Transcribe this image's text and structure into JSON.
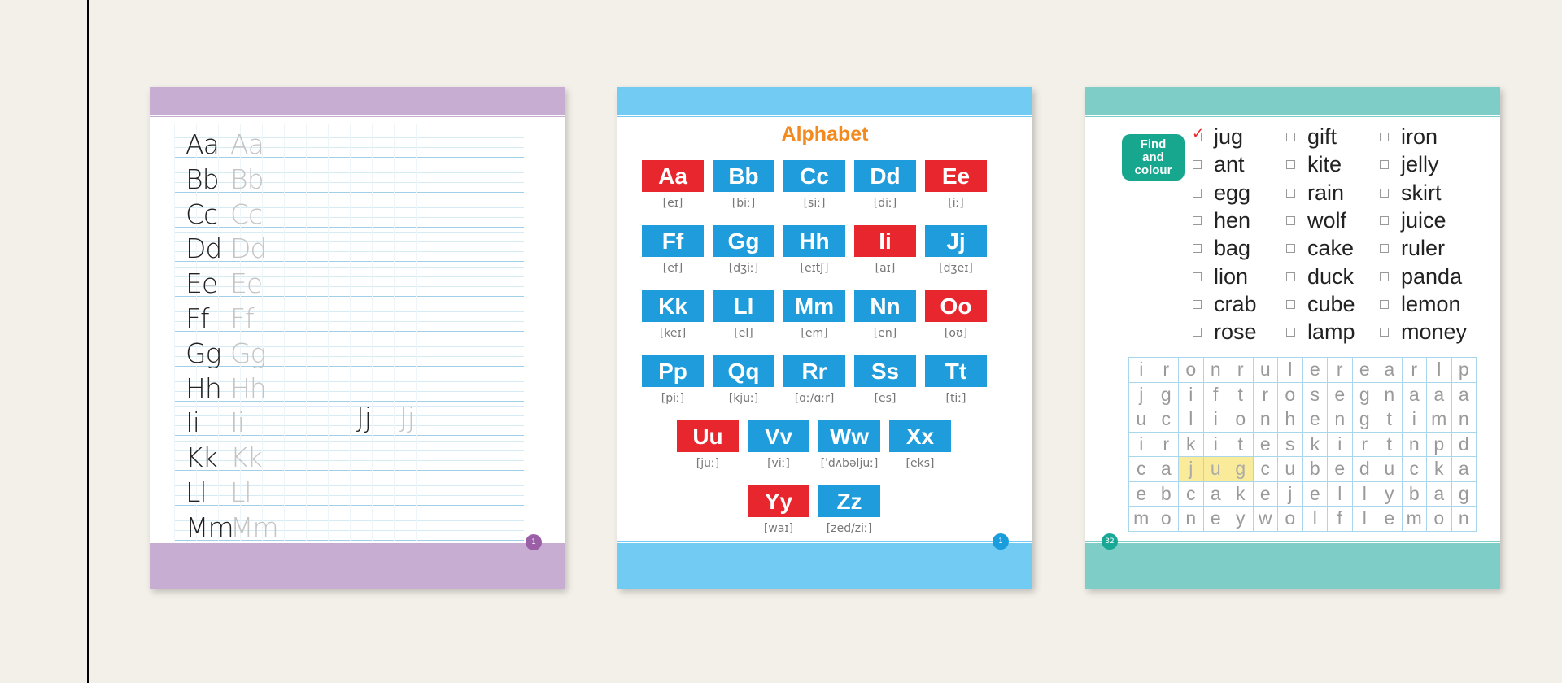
{
  "page1": {
    "page_number": "1",
    "rows": [
      {
        "letters": "Aa"
      },
      {
        "letters": "Bb"
      },
      {
        "letters": "Cc"
      },
      {
        "letters": "Dd"
      },
      {
        "letters": "Ee"
      },
      {
        "letters": "Ff"
      },
      {
        "letters": "Gg"
      },
      {
        "letters": "Hh"
      },
      {
        "letters": "Ii"
      },
      {
        "letters": "Kk"
      },
      {
        "letters": "Ll"
      },
      {
        "letters": "Mm"
      }
    ],
    "extra": {
      "letters": "Jj"
    }
  },
  "page2": {
    "title": "Alphabet",
    "page_number": "1",
    "tiles": [
      {
        "label": "Aa",
        "ipa": "[eɪ]",
        "color": "red"
      },
      {
        "label": "Bb",
        "ipa": "[biː]",
        "color": "blue"
      },
      {
        "label": "Cc",
        "ipa": "[siː]",
        "color": "blue"
      },
      {
        "label": "Dd",
        "ipa": "[diː]",
        "color": "blue"
      },
      {
        "label": "Ee",
        "ipa": "[iː]",
        "color": "red"
      },
      {
        "label": "Ff",
        "ipa": "[ef]",
        "color": "blue"
      },
      {
        "label": "Gg",
        "ipa": "[dʒiː]",
        "color": "blue"
      },
      {
        "label": "Hh",
        "ipa": "[eɪtʃ]",
        "color": "blue"
      },
      {
        "label": "Ii",
        "ipa": "[aɪ]",
        "color": "red"
      },
      {
        "label": "Jj",
        "ipa": "[dʒeɪ]",
        "color": "blue"
      },
      {
        "label": "Kk",
        "ipa": "[keɪ]",
        "color": "blue"
      },
      {
        "label": "Ll",
        "ipa": "[el]",
        "color": "blue"
      },
      {
        "label": "Mm",
        "ipa": "[em]",
        "color": "blue"
      },
      {
        "label": "Nn",
        "ipa": "[en]",
        "color": "blue"
      },
      {
        "label": "Oo",
        "ipa": "[oʊ]",
        "color": "red"
      },
      {
        "label": "Pp",
        "ipa": "[piː]",
        "color": "blue"
      },
      {
        "label": "Qq",
        "ipa": "[kjuː]",
        "color": "blue"
      },
      {
        "label": "Rr",
        "ipa": "[ɑː/ɑːr]",
        "color": "blue"
      },
      {
        "label": "Ss",
        "ipa": "[es]",
        "color": "blue"
      },
      {
        "label": "Tt",
        "ipa": "[tiː]",
        "color": "blue"
      },
      {
        "label": "Uu",
        "ipa": "[juː]",
        "color": "red"
      },
      {
        "label": "Vv",
        "ipa": "[viː]",
        "color": "blue"
      },
      {
        "label": "Ww",
        "ipa": "[ˈdʌbəljuː]",
        "color": "blue"
      },
      {
        "label": "Xx",
        "ipa": "[eks]",
        "color": "blue"
      },
      {
        "label": "Yy",
        "ipa": "[waɪ]",
        "color": "red"
      },
      {
        "label": "Zz",
        "ipa": "[zed/ziː]",
        "color": "blue"
      }
    ]
  },
  "page3": {
    "badge": [
      "Find",
      "and",
      "colour"
    ],
    "page_number": "32",
    "words": [
      {
        "text": "jug",
        "checked": true
      },
      {
        "text": "ant"
      },
      {
        "text": "egg"
      },
      {
        "text": "hen"
      },
      {
        "text": "bag"
      },
      {
        "text": "lion"
      },
      {
        "text": "crab"
      },
      {
        "text": "rose"
      },
      {
        "text": "gift"
      },
      {
        "text": "kite"
      },
      {
        "text": "rain"
      },
      {
        "text": "wolf"
      },
      {
        "text": "cake"
      },
      {
        "text": "duck"
      },
      {
        "text": "cube"
      },
      {
        "text": "lamp"
      },
      {
        "text": "iron"
      },
      {
        "text": "jelly"
      },
      {
        "text": "skirt"
      },
      {
        "text": "juice"
      },
      {
        "text": "ruler"
      },
      {
        "text": "panda"
      },
      {
        "text": "lemon"
      },
      {
        "text": "money"
      }
    ],
    "grid": [
      [
        "i",
        "r",
        "o",
        "n",
        "r",
        "u",
        "l",
        "e",
        "r",
        "e",
        "a",
        "r",
        "l",
        "p"
      ],
      [
        "j",
        "g",
        "i",
        "f",
        "t",
        "r",
        "o",
        "s",
        "e",
        "g",
        "n",
        "a",
        "a",
        "a"
      ],
      [
        "u",
        "c",
        "l",
        "i",
        "o",
        "n",
        "h",
        "e",
        "n",
        "g",
        "t",
        "i",
        "m",
        "n"
      ],
      [
        "i",
        "r",
        "k",
        "i",
        "t",
        "e",
        "s",
        "k",
        "i",
        "r",
        "t",
        "n",
        "p",
        "d"
      ],
      [
        "c",
        "a",
        "j",
        "u",
        "g",
        "c",
        "u",
        "b",
        "e",
        "d",
        "u",
        "c",
        "k",
        "a"
      ],
      [
        "e",
        "b",
        "c",
        "a",
        "k",
        "e",
        "j",
        "e",
        "l",
        "l",
        "y",
        "b",
        "a",
        "g"
      ],
      [
        "m",
        "o",
        "n",
        "e",
        "y",
        "w",
        "o",
        "l",
        "f",
        "l",
        "e",
        "m",
        "o",
        "n"
      ]
    ],
    "highlight_color": "#faeb9a"
  }
}
